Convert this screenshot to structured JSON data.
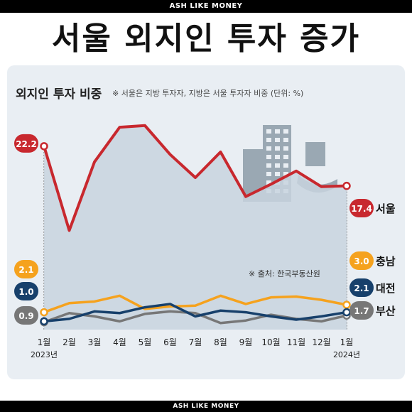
{
  "brand_top": "ASH LIKE MONEY",
  "brand_bottom": "ASH LIKE MONEY",
  "headline": "서울 외지인 투자 증가",
  "chart_data": {
    "type": "line",
    "title": "외지인 투자 비중",
    "subtitle": "※ 서울은 지방 투자자, 지방은 서울 투자자 비중  (단위: %)",
    "source": "※ 출처: 한국부동산원",
    "categories": [
      "1월",
      "2월",
      "3월",
      "4월",
      "5월",
      "6월",
      "7월",
      "8월",
      "9월",
      "10월",
      "11월",
      "12월",
      "1월"
    ],
    "year_labels": [
      {
        "index": 0,
        "text": "2023년"
      },
      {
        "index": 12,
        "text": "2024년"
      }
    ],
    "ylim": [
      0,
      27
    ],
    "grid": false,
    "series": [
      {
        "name": "서울",
        "color": "#c8282e",
        "fill": true,
        "values": [
          22.2,
          12.0,
          20.3,
          24.5,
          24.7,
          21.2,
          18.4,
          21.5,
          16.1,
          17.6,
          19.2,
          17.3,
          17.4
        ],
        "start_label": "22.2",
        "end_label": "17.4"
      },
      {
        "name": "충남",
        "color": "#f5a21e",
        "fill": false,
        "values": [
          2.1,
          3.2,
          3.4,
          4.1,
          2.5,
          2.8,
          2.9,
          4.1,
          3.1,
          3.9,
          4.0,
          3.6,
          3.0
        ],
        "start_label": "2.1",
        "end_label": "3.0"
      },
      {
        "name": "대전",
        "color": "#17406b",
        "fill": false,
        "values": [
          1.0,
          1.3,
          2.2,
          2.0,
          2.7,
          3.1,
          1.6,
          2.3,
          2.1,
          1.6,
          1.2,
          1.6,
          2.1
        ],
        "start_label": "1.0",
        "end_label": "2.1"
      },
      {
        "name": "부산",
        "color": "#777777",
        "fill": false,
        "values": [
          0.9,
          2.0,
          1.6,
          1.0,
          1.9,
          2.2,
          2.0,
          0.8,
          1.1,
          1.8,
          1.3,
          1.0,
          1.7
        ],
        "start_label": "0.9",
        "end_label": "1.7"
      }
    ],
    "label_colors": {
      "충남": "#f5a21e",
      "대전": "#17406b",
      "부산": "#777777",
      "서울": "#c8282e"
    }
  }
}
